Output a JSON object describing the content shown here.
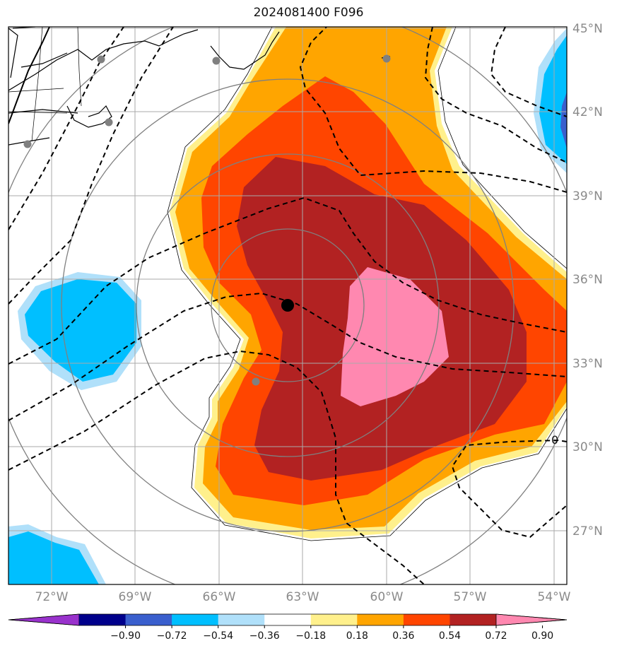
{
  "title": "2024081400 F096",
  "latitude_labels": [
    "45°N",
    "42°N",
    "39°N",
    "36°N",
    "33°N",
    "30°N",
    "27°N"
  ],
  "longitude_labels": [
    "72°W",
    "69°W",
    "66°W",
    "63°W",
    "60°W",
    "57°W",
    "54°W"
  ],
  "contour_label": "0",
  "colorbar": {
    "tick_labels": [
      "−0.90",
      "−0.72",
      "−0.54",
      "−0.36",
      "−0.18",
      "0.18",
      "0.36",
      "0.54",
      "0.72",
      "0.90"
    ],
    "colors": [
      "#9932cc",
      "#00008b",
      "#3a5fcd",
      "#00bfff",
      "#b0e0fa",
      "#ffffff",
      "#fff08c",
      "#ffa500",
      "#ff4500",
      "#b22222",
      "#ff88b0"
    ]
  },
  "colors": {
    "pink": "#ff88b0",
    "darkred": "#b22222",
    "orangered": "#ff4500",
    "orange": "#ffa500",
    "yellow": "#fff08c",
    "lightblue": "#b0e0fa",
    "blue": "#00bfff",
    "midblue": "#3a5fcd",
    "grid": "#aaaaaa",
    "range_ring": "#808080"
  },
  "center_marker": "storm-center",
  "station_markers": 6
}
